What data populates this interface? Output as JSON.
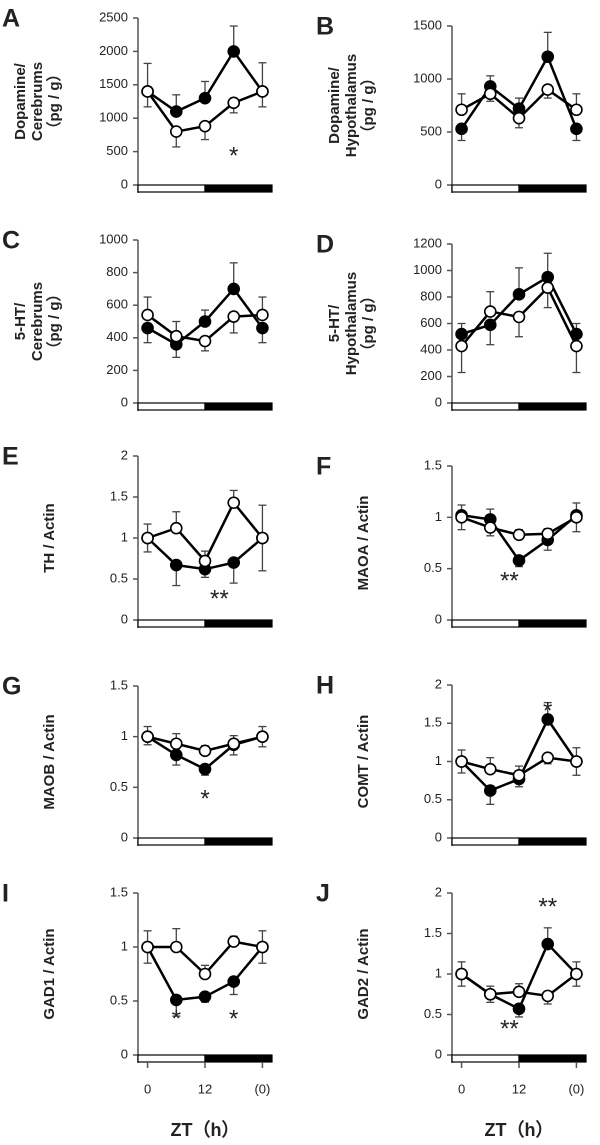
{
  "chart_data": [
    {
      "type": "line",
      "panel": "A",
      "ylabel": [
        "Dopamine/",
        "Cerebrums",
        "（pg / g）"
      ],
      "x": [
        0,
        6,
        12,
        18,
        24
      ],
      "xlim": [
        -2,
        26
      ],
      "ylim": [
        0,
        2500
      ],
      "yticks": [
        0,
        500,
        1000,
        1500,
        2000,
        2500
      ],
      "series": [
        {
          "color": "#000",
          "fill": "#000",
          "values": [
            1400,
            1100,
            1300,
            2000,
            1400
          ],
          "errors": [
            420,
            250,
            250,
            380,
            430
          ]
        },
        {
          "color": "#000",
          "fill": "#fff",
          "values": [
            1400,
            800,
            880,
            1230,
            1400
          ],
          "errors": [
            230,
            230,
            200,
            150,
            230
          ]
        }
      ],
      "annotations": [
        "*"
      ]
    },
    {
      "type": "line",
      "panel": "B",
      "ylabel": [
        "Dopamine/",
        "Hypothalamus",
        "（pg / g）"
      ],
      "x": [
        0,
        6,
        12,
        18,
        24
      ],
      "xlim": [
        -2,
        26
      ],
      "ylim": [
        0,
        1500
      ],
      "yticks": [
        0,
        500,
        1000,
        1500
      ],
      "series": [
        {
          "color": "#000",
          "fill": "#000",
          "values": [
            530,
            930,
            720,
            1210,
            530
          ],
          "errors": [
            110,
            100,
            100,
            230,
            110
          ]
        },
        {
          "color": "#000",
          "fill": "#fff",
          "values": [
            710,
            860,
            630,
            900,
            710
          ],
          "errors": [
            150,
            70,
            90,
            80,
            150
          ]
        }
      ],
      "annotations": []
    },
    {
      "type": "line",
      "panel": "C",
      "ylabel": [
        "5-HT/",
        "Cerebrums",
        "（pg / g）"
      ],
      "x": [
        0,
        6,
        12,
        18,
        24
      ],
      "xlim": [
        -2,
        26
      ],
      "ylim": [
        0,
        1000
      ],
      "yticks": [
        0,
        200,
        400,
        600,
        800,
        1000
      ],
      "series": [
        {
          "color": "#000",
          "fill": "#000",
          "values": [
            460,
            360,
            500,
            700,
            460
          ],
          "errors": [
            90,
            80,
            70,
            160,
            90
          ]
        },
        {
          "color": "#000",
          "fill": "#fff",
          "values": [
            540,
            410,
            380,
            530,
            540
          ],
          "errors": [
            110,
            90,
            60,
            100,
            110
          ]
        }
      ],
      "annotations": []
    },
    {
      "type": "line",
      "panel": "D",
      "ylabel": [
        "5-HT/",
        "Hypothalamus",
        "（pg / g）"
      ],
      "x": [
        0,
        6,
        12,
        18,
        24
      ],
      "xlim": [
        -2,
        26
      ],
      "ylim": [
        0,
        1200
      ],
      "yticks": [
        0,
        200,
        400,
        600,
        800,
        1000,
        1200
      ],
      "series": [
        {
          "color": "#000",
          "fill": "#000",
          "values": [
            520,
            590,
            820,
            950,
            520
          ],
          "errors": [
            80,
            150,
            200,
            180,
            80
          ]
        },
        {
          "color": "#000",
          "fill": "#fff",
          "values": [
            430,
            690,
            650,
            870,
            430
          ],
          "errors": [
            200,
            150,
            150,
            150,
            200
          ]
        }
      ],
      "annotations": []
    },
    {
      "type": "line",
      "panel": "E",
      "ylabel": [
        "TH / Actin"
      ],
      "x": [
        0,
        6,
        12,
        18,
        24
      ],
      "xlim": [
        -2,
        26
      ],
      "ylim": [
        0,
        2
      ],
      "yticks": [
        0,
        0.5,
        1,
        1.5,
        2
      ],
      "series": [
        {
          "color": "#000",
          "fill": "#000",
          "values": [
            1.0,
            0.67,
            0.62,
            0.7,
            1.0
          ],
          "errors": [
            0.17,
            0.25,
            0.1,
            0.25,
            0.4
          ]
        },
        {
          "color": "#000",
          "fill": "#fff",
          "values": [
            1.0,
            1.12,
            0.72,
            1.43,
            1.0
          ],
          "errors": [
            0.17,
            0.2,
            0.12,
            0.15,
            0.4
          ]
        }
      ],
      "annotations": [
        "**"
      ]
    },
    {
      "type": "line",
      "panel": "F",
      "ylabel": [
        "MAOA / Actin"
      ],
      "x": [
        0,
        6,
        12,
        18,
        24
      ],
      "xlim": [
        -2,
        26
      ],
      "ylim": [
        0,
        1.5
      ],
      "yticks": [
        0,
        0.5,
        1,
        1.5
      ],
      "series": [
        {
          "color": "#000",
          "fill": "#000",
          "values": [
            1.02,
            0.98,
            0.58,
            0.78,
            1.02
          ],
          "errors": [
            0.1,
            0.1,
            0.06,
            0.1,
            0.12
          ]
        },
        {
          "color": "#000",
          "fill": "#fff",
          "values": [
            1.0,
            0.9,
            0.83,
            0.84,
            1.0
          ],
          "errors": [
            0.12,
            0.08,
            0.05,
            0.05,
            0.14
          ]
        }
      ],
      "annotations": [
        "**"
      ]
    },
    {
      "type": "line",
      "panel": "G",
      "ylabel": [
        "MAOB / Actin"
      ],
      "x": [
        0,
        6,
        12,
        18,
        24
      ],
      "xlim": [
        -2,
        26
      ],
      "ylim": [
        0,
        1.5
      ],
      "yticks": [
        0,
        0.5,
        1,
        1.5
      ],
      "series": [
        {
          "color": "#000",
          "fill": "#000",
          "values": [
            1.0,
            0.82,
            0.68,
            0.92,
            1.0
          ],
          "errors": [
            0.1,
            0.1,
            0.06,
            0.1,
            0.1
          ]
        },
        {
          "color": "#000",
          "fill": "#fff",
          "values": [
            1.0,
            0.93,
            0.86,
            0.93,
            1.0
          ],
          "errors": [
            0.08,
            0.1,
            0.05,
            0.08,
            0.1
          ]
        }
      ],
      "annotations": [
        "*"
      ]
    },
    {
      "type": "line",
      "panel": "H",
      "ylabel": [
        "COMT / Actin"
      ],
      "x": [
        0,
        6,
        12,
        18,
        24
      ],
      "xlim": [
        -2,
        26
      ],
      "ylim": [
        0,
        2
      ],
      "yticks": [
        0,
        0.5,
        1,
        1.5,
        2
      ],
      "series": [
        {
          "color": "#000",
          "fill": "#000",
          "values": [
            1.0,
            0.62,
            0.77,
            1.55,
            1.0
          ],
          "errors": [
            0.15,
            0.18,
            0.1,
            0.22,
            0.18
          ]
        },
        {
          "color": "#000",
          "fill": "#fff",
          "values": [
            1.0,
            0.9,
            0.82,
            1.05,
            1.0
          ],
          "errors": [
            0.15,
            0.15,
            0.12,
            0.08,
            0.18
          ]
        }
      ],
      "annotations": [
        "*"
      ]
    },
    {
      "type": "line",
      "panel": "I",
      "ylabel": [
        "GAD1 / Actin"
      ],
      "x": [
        0,
        6,
        12,
        18,
        24
      ],
      "xlim": [
        -2,
        26
      ],
      "ylim": [
        0,
        1.5
      ],
      "yticks": [
        0,
        0.5,
        1,
        1.5
      ],
      "xticks": [
        0,
        12,
        {
          "value": 24,
          "label": "(0)"
        }
      ],
      "xlabel": "ZT（h）",
      "series": [
        {
          "color": "#000",
          "fill": "#000",
          "values": [
            1.0,
            0.51,
            0.54,
            0.68,
            1.0
          ],
          "errors": [
            0.15,
            0.15,
            0.05,
            0.12,
            0.15
          ]
        },
        {
          "color": "#000",
          "fill": "#fff",
          "values": [
            1.0,
            1.0,
            0.75,
            1.05,
            1.0
          ],
          "errors": [
            0.15,
            0.17,
            0.08,
            0.05,
            0.15
          ]
        }
      ],
      "annotations": [
        "*",
        "*"
      ]
    },
    {
      "type": "line",
      "panel": "J",
      "ylabel": [
        "GAD2 / Actin"
      ],
      "x": [
        0,
        6,
        12,
        18,
        24
      ],
      "xlim": [
        -2,
        26
      ],
      "ylim": [
        0,
        2
      ],
      "yticks": [
        0,
        0.5,
        1,
        1.5,
        2
      ],
      "xticks": [
        0,
        12,
        {
          "value": 24,
          "label": "(0)"
        }
      ],
      "xlabel": "ZT（h）",
      "series": [
        {
          "color": "#000",
          "fill": "#000",
          "values": [
            1.0,
            0.75,
            0.57,
            1.37,
            1.0
          ],
          "errors": [
            0.15,
            0.1,
            0.1,
            0.2,
            0.15
          ]
        },
        {
          "color": "#000",
          "fill": "#fff",
          "values": [
            1.0,
            0.75,
            0.78,
            0.73,
            1.0
          ],
          "errors": [
            0.15,
            0.1,
            0.1,
            0.1,
            0.15
          ]
        }
      ],
      "annotations": [
        "**",
        "**"
      ]
    }
  ]
}
